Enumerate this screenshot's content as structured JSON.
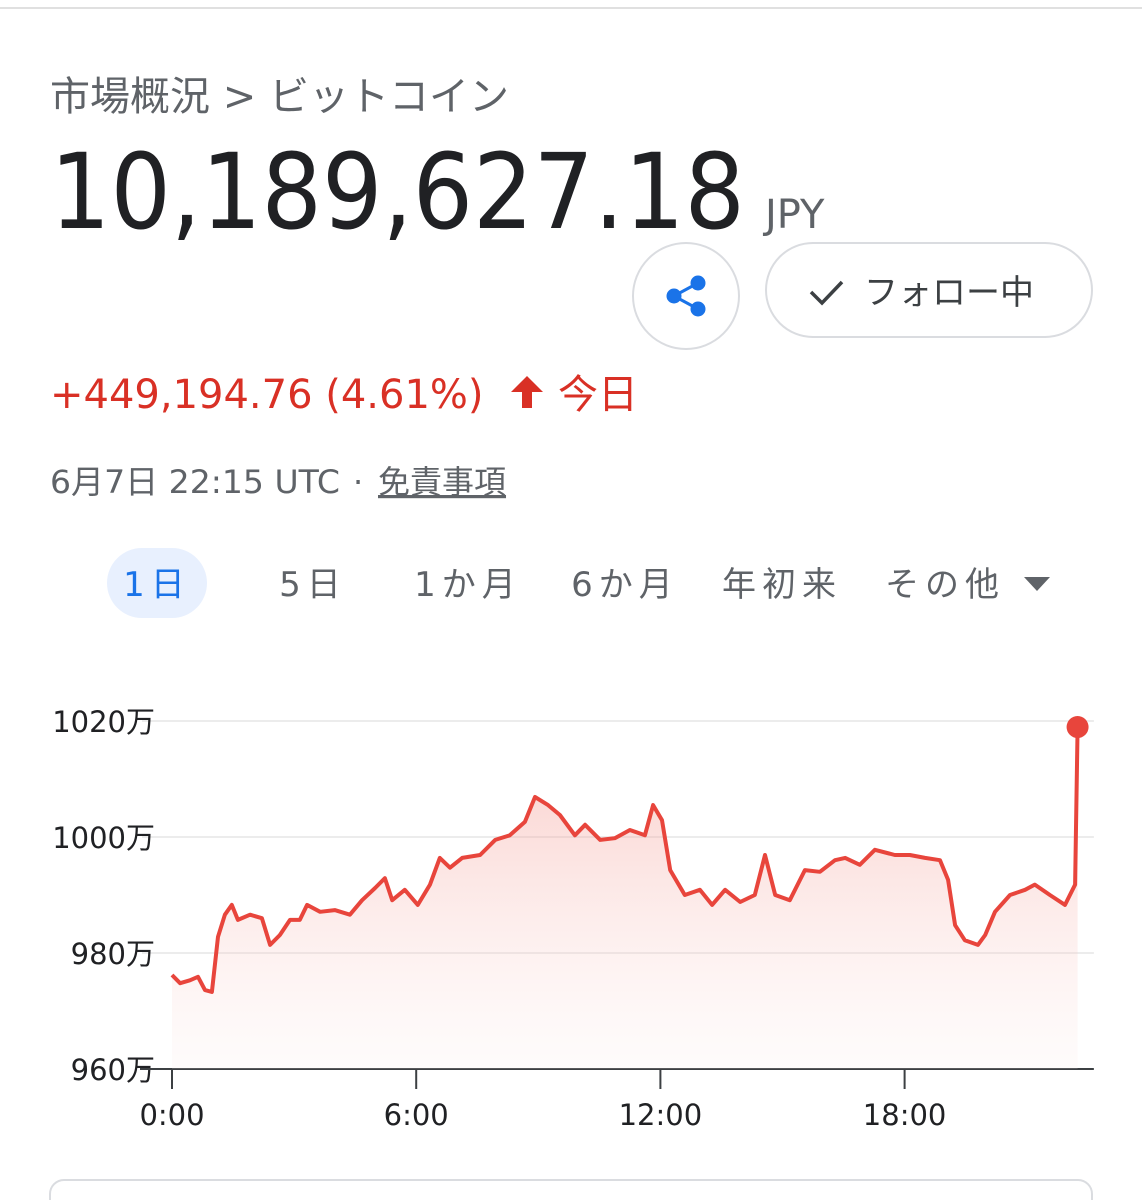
{
  "breadcrumb": "市場概況 > ビットコイン",
  "price": "10,189,627.18",
  "currency": "JPY",
  "follow_button": "フォロー中",
  "change": "+449,194.76 (4.61%)",
  "change_period": "今日",
  "timestamp": "6月7日 22:15 UTC",
  "timestamp_separator": "·",
  "disclaimer": "免責事項",
  "tabs": [
    "1日",
    "5日",
    "1か月",
    "6か月",
    "年初来",
    "その他"
  ],
  "selected_tab": 0,
  "chart_data": {
    "type": "line",
    "color": "#e8453c",
    "x": [
      0,
      0.2,
      0.44,
      0.64,
      0.81,
      0.98,
      1.13,
      1.3,
      1.47,
      1.62,
      1.92,
      2.21,
      2.41,
      2.65,
      2.9,
      3.14,
      3.32,
      3.64,
      4.0,
      4.37,
      4.67,
      4.99,
      5.23,
      5.41,
      5.72,
      6.04,
      6.34,
      6.58,
      6.83,
      7.13,
      7.57,
      7.94,
      8.3,
      8.67,
      8.92,
      9.24,
      9.53,
      9.9,
      10.15,
      10.52,
      10.88,
      11.25,
      11.62,
      11.82,
      12.04,
      12.24,
      12.6,
      12.97,
      13.27,
      13.59,
      13.96,
      14.32,
      14.57,
      14.82,
      15.18,
      15.55,
      15.92,
      16.29,
      16.54,
      16.9,
      17.27,
      17.76,
      18.13,
      18.5,
      18.87,
      19.07,
      19.24,
      19.48,
      19.8,
      19.98,
      20.22,
      20.59,
      20.96,
      21.2,
      21.57,
      21.94,
      22.19,
      22.25
    ],
    "values": [
      976.2,
      974.8,
      975.3,
      975.9,
      973.6,
      973.3,
      982.8,
      986.6,
      988.3,
      985.7,
      986.6,
      986.0,
      981.4,
      983.1,
      985.7,
      985.7,
      988.3,
      987.1,
      987.4,
      986.6,
      989.1,
      991.2,
      992.9,
      989.1,
      990.9,
      988.3,
      991.8,
      996.4,
      994.7,
      996.4,
      996.9,
      999.5,
      1000.3,
      1002.6,
      1006.9,
      1005.5,
      1003.8,
      1000.3,
      1002.1,
      999.5,
      999.8,
      1001.2,
      1000.3,
      1005.5,
      1002.9,
      994.3,
      990.0,
      990.9,
      988.3,
      990.9,
      988.8,
      990.0,
      996.9,
      990.0,
      989.1,
      994.3,
      994.0,
      996.0,
      996.4,
      995.2,
      997.8,
      996.9,
      996.9,
      996.4,
      996.0,
      992.6,
      984.8,
      982.2,
      981.4,
      983.1,
      987.1,
      990.0,
      990.9,
      991.8,
      990.0,
      988.3,
      991.8,
      1018.96
    ],
    "xlim": [
      0,
      22.65
    ],
    "xticks": [
      {
        "value": 0,
        "label": "0:00"
      },
      {
        "value": 6,
        "label": "6:00"
      },
      {
        "value": 12,
        "label": "12:00"
      },
      {
        "value": 18,
        "label": "18:00"
      }
    ],
    "ylim": [
      960,
      1020
    ],
    "yticks": [
      {
        "value": 960,
        "label": "960万"
      },
      {
        "value": 980,
        "label": "980万"
      },
      {
        "value": 1000,
        "label": "1000万"
      },
      {
        "value": 1020,
        "label": "1020万"
      }
    ],
    "grid": true
  }
}
